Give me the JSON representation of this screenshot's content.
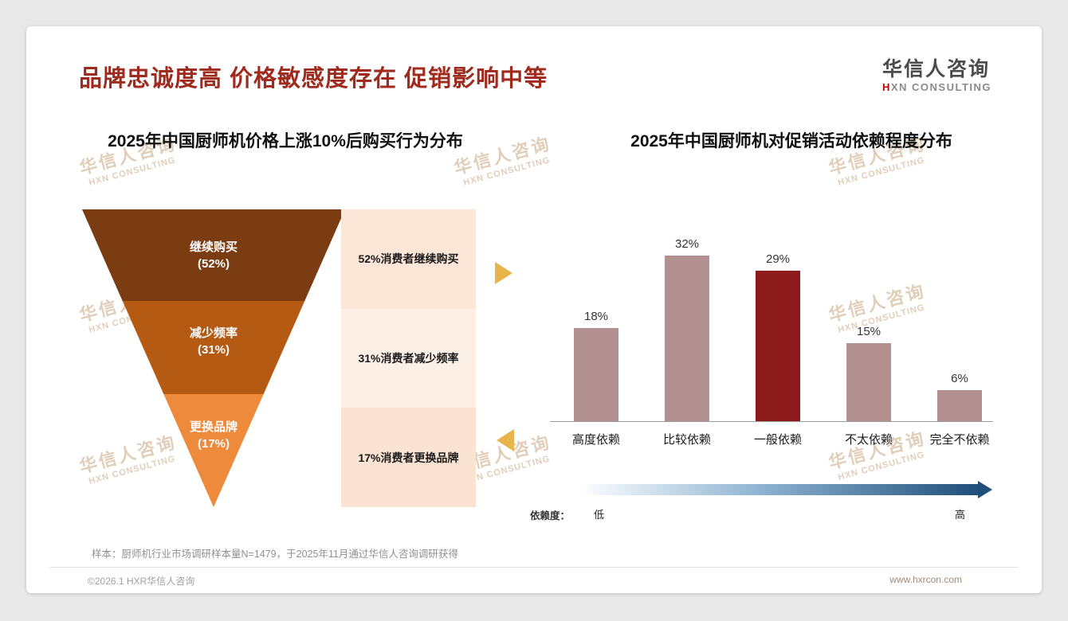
{
  "page": {
    "title": "品牌忠诚度高 价格敏感度存在 促销影响中等",
    "title_color": "#9E2B1E",
    "logo": {
      "cn": "华信人咨询",
      "en_accent": "H",
      "en_rest": "XN CONSULTING"
    },
    "watermark": {
      "line1": "华信人咨询",
      "line2": "HXN CONSULTING"
    },
    "footnote": "样本：厨师机行业市场调研样本量N=1479，于2025年11月通过华信人咨询调研获得",
    "footer": {
      "left": "©2026.1 HXR华信人咨询",
      "right": "www.hxrcon.com"
    }
  },
  "funnel": {
    "title": "2025年中国厨师机价格上涨10%后购买行为分布",
    "segments": [
      {
        "name": "继续购买",
        "pct": "(52%)",
        "note": "52%消费者继续购买",
        "color": "#7C3C12",
        "note_bg": "#FBE6D8"
      },
      {
        "name": "减少频率",
        "pct": "(31%)",
        "note": "31%消费者减少频率",
        "color": "#B55A13",
        "note_bg": "#FCEFE6"
      },
      {
        "name": "更换品牌",
        "pct": "(17%)",
        "note": "17%消费者更换品牌",
        "color": "#EE8A3B",
        "note_bg": "#FAE3D2"
      }
    ]
  },
  "bar_chart": {
    "title": "2025年中国厨师机对促销活动依赖程度分布",
    "bars": [
      {
        "label": "高度依赖",
        "value": 18,
        "display": "18%",
        "color": "#B29190"
      },
      {
        "label": "比较依赖",
        "value": 32,
        "display": "32%",
        "color": "#B29190"
      },
      {
        "label": "一般依赖",
        "value": 29,
        "display": "29%",
        "color": "#8E1B1B"
      },
      {
        "label": "不太依赖",
        "value": 15,
        "display": "15%",
        "color": "#B29190"
      },
      {
        "label": "完全不依赖",
        "value": 6,
        "display": "6%",
        "color": "#B29190"
      }
    ],
    "axis": {
      "prefix": "依赖度：",
      "low": "低",
      "high": "高"
    },
    "gradient": {
      "from": "#FFFFFF",
      "mid": "#8FB4D2",
      "to": "#1F4E79"
    }
  },
  "chart_data": [
    {
      "type": "funnel",
      "title": "2025年中国厨师机价格上涨10%后购买行为分布",
      "categories": [
        "继续购买",
        "减少频率",
        "更换品牌"
      ],
      "values": [
        52,
        31,
        17
      ],
      "unit": "%",
      "annotations": [
        "52%消费者继续购买",
        "31%消费者减少频率",
        "17%消费者更换品牌"
      ],
      "colors": [
        "#7C3C12",
        "#B55A13",
        "#EE8A3B"
      ]
    },
    {
      "type": "bar",
      "title": "2025年中国厨师机对促销活动依赖程度分布",
      "categories": [
        "高度依赖",
        "比较依赖",
        "一般依赖",
        "不太依赖",
        "完全不依赖"
      ],
      "values": [
        18,
        32,
        29,
        15,
        6
      ],
      "unit": "%",
      "ylim": [
        0,
        35
      ],
      "grid": false,
      "legend": false,
      "highlight_index": 2,
      "bar_colors": [
        "#B29190",
        "#B29190",
        "#8E1B1B",
        "#B29190",
        "#B29190"
      ],
      "axis_note": {
        "label": "依赖度：",
        "low": "低",
        "high": "高"
      }
    }
  ]
}
